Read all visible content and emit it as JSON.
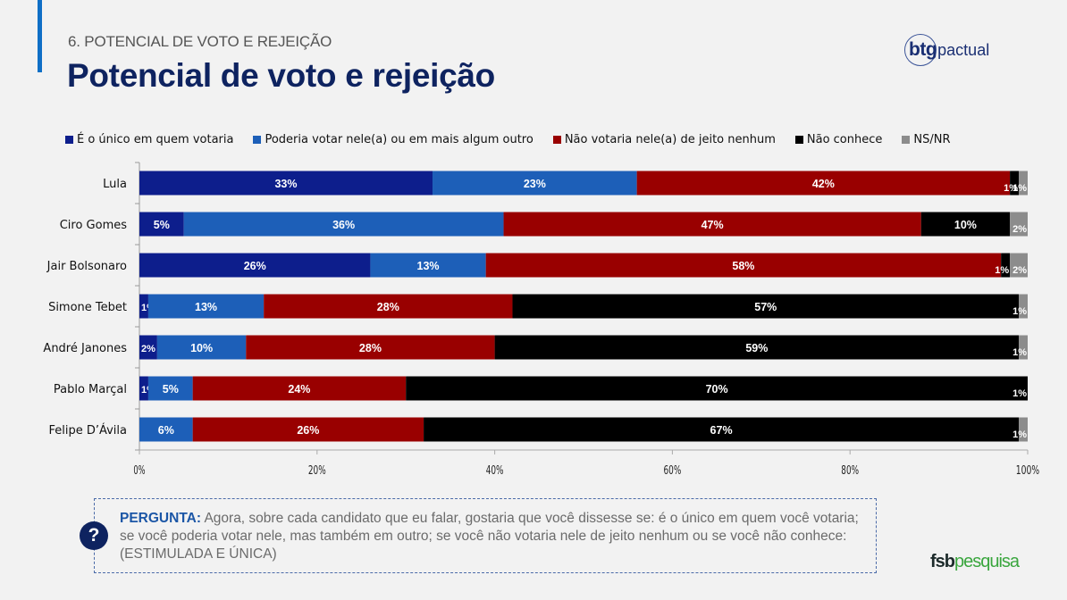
{
  "header": {
    "section_label": "6. POTENCIAL DE VOTO E REJEIÇÃO",
    "title": "Potencial de voto e rejeição",
    "logo_bold": "btg",
    "logo_light": "pactual"
  },
  "colors": {
    "accent": "#0f6fc6",
    "title": "#0e2360",
    "unico": "#0d1e8c",
    "poderia": "#1d5fb8",
    "nao_votaria": "#990000",
    "nao_conhece": "#000000",
    "nsnr": "#8c8c8c"
  },
  "chart_data": {
    "type": "bar",
    "orientation": "horizontal",
    "stacked": true,
    "title": "Potencial de voto e rejeição",
    "xlabel": "",
    "ylabel": "",
    "xlim": [
      0,
      100
    ],
    "x_ticks": [
      "0%",
      "20%",
      "40%",
      "60%",
      "80%",
      "100%"
    ],
    "legend_position": "top",
    "grid": false,
    "categories": [
      "Lula",
      "Ciro Gomes",
      "Jair Bolsonaro",
      "Simone Tebet",
      "André Janones",
      "Pablo Marçal",
      "Felipe D’Ávila"
    ],
    "series": [
      {
        "name": "É o único em quem votaria",
        "color": "#0d1e8c",
        "values": [
          33,
          5,
          26,
          1,
          2,
          1,
          0
        ]
      },
      {
        "name": "Poderia votar nele(a) ou em mais algum outro",
        "color": "#1d5fb8",
        "values": [
          23,
          36,
          13,
          13,
          10,
          5,
          6
        ]
      },
      {
        "name": "Não votaria nele(a) de jeito nenhum",
        "color": "#990000",
        "values": [
          42,
          47,
          58,
          28,
          28,
          24,
          26
        ]
      },
      {
        "name": "Não conhece",
        "color": "#000000",
        "values": [
          1,
          10,
          1,
          57,
          59,
          70,
          67
        ]
      },
      {
        "name": "NS/NR",
        "color": "#8c8c8c",
        "values": [
          1,
          2,
          2,
          1,
          1,
          1,
          1
        ]
      }
    ]
  },
  "question": {
    "label": "PERGUNTA:",
    "text": " Agora, sobre cada candidato que eu falar, gostaria que você dissesse se: é o único em quem você votaria; se você poderia votar nele, mas também em outro; se você não votaria nele de jeito nenhum ou se você não conhece: (ESTIMULADA E ÚNICA)",
    "icon": "question-icon"
  },
  "footer": {
    "logo_bold": "fsb",
    "logo_light": "pesquisa"
  }
}
